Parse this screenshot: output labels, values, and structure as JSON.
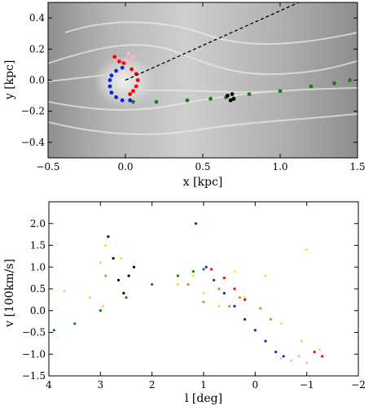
{
  "chart_data": [
    {
      "type": "scatter",
      "title": "",
      "xlabel": "x [kpc]",
      "ylabel": "y [kpc]",
      "xlim": [
        -0.5,
        1.5
      ],
      "ylim": [
        -0.5,
        0.5
      ],
      "xticks": [
        "−0.5",
        "0.0",
        "0.5",
        "1.0",
        "1.5"
      ],
      "yticks": [
        "−0.4",
        "−0.2",
        "0.0",
        "0.2",
        "0.4"
      ],
      "background": "greyscale gas density map",
      "series": [
        {
          "color": "#1020e0",
          "style": "points",
          "points": [
            [
              -0.02,
              0.08
            ],
            [
              -0.06,
              0.06
            ],
            [
              -0.09,
              0.03
            ],
            [
              -0.1,
              0.0
            ],
            [
              -0.1,
              -0.04
            ],
            [
              -0.09,
              -0.08
            ],
            [
              -0.06,
              -0.11
            ],
            [
              -0.02,
              -0.13
            ],
            [
              0.03,
              -0.13
            ]
          ]
        },
        {
          "color": "#ff0000",
          "style": "points",
          "points": [
            [
              0.04,
              0.07
            ],
            [
              0.07,
              0.04
            ],
            [
              0.08,
              0.0
            ],
            [
              0.07,
              -0.04
            ],
            [
              0.05,
              -0.07
            ],
            [
              0.03,
              -0.09
            ],
            [
              -0.07,
              0.15
            ],
            [
              -0.04,
              0.12
            ],
            [
              -0.01,
              0.11
            ]
          ]
        },
        {
          "color": "#ffb6c1",
          "style": "points",
          "points": [
            [
              0.0,
              0.13
            ],
            [
              0.03,
              0.12
            ],
            [
              0.05,
              0.15
            ],
            [
              0.02,
              0.17
            ]
          ]
        },
        {
          "color": "#1e7a1e",
          "style": "points",
          "points": [
            [
              0.05,
              -0.14
            ],
            [
              0.2,
              -0.14
            ],
            [
              0.4,
              -0.13
            ],
            [
              0.55,
              -0.12
            ],
            [
              0.65,
              -0.11
            ],
            [
              0.8,
              -0.09
            ],
            [
              1.0,
              -0.07
            ],
            [
              1.2,
              -0.04
            ],
            [
              1.35,
              -0.02
            ],
            [
              1.45,
              0.0
            ]
          ]
        },
        {
          "color": "#000000",
          "style": "points",
          "points": [
            [
              0.66,
              -0.1
            ],
            [
              0.68,
              -0.13
            ],
            [
              0.7,
              -0.12
            ],
            [
              0.69,
              -0.09
            ]
          ]
        },
        {
          "color": "#000000",
          "style": "dashed",
          "points": [
            [
              0.0,
              0.0
            ],
            [
              1.12,
              0.5
            ]
          ]
        }
      ]
    },
    {
      "type": "scatter",
      "title": "",
      "xlabel": "l [deg]",
      "ylabel": "v [100km/s]",
      "xlim": [
        4,
        -2
      ],
      "ylim": [
        -1.5,
        2.5
      ],
      "xticks": [
        "4",
        "3",
        "2",
        "1",
        "0",
        "−1",
        "−2"
      ],
      "yticks": [
        "−1.5",
        "−1.0",
        "−0.5",
        "0.0",
        "0.5",
        "1.0",
        "1.5",
        "2.0"
      ],
      "series": [
        {
          "color": "#f2e640",
          "style": "points",
          "points": [
            [
              3.7,
              0.45
            ],
            [
              3.2,
              0.3
            ],
            [
              2.95,
              0.1
            ],
            [
              2.9,
              1.5
            ],
            [
              3.0,
              1.1
            ],
            [
              2.6,
              1.2
            ],
            [
              1.5,
              0.6
            ],
            [
              1.2,
              0.8
            ],
            [
              1.0,
              0.4
            ],
            [
              0.7,
              0.1
            ],
            [
              0.4,
              0.9
            ],
            [
              0.2,
              0.3
            ],
            [
              -0.2,
              0.8
            ],
            [
              -0.5,
              -0.3
            ],
            [
              -0.9,
              -0.7
            ],
            [
              -1.0,
              1.4
            ],
            [
              -1.25,
              -0.9
            ]
          ]
        },
        {
          "color": "#e48a2a",
          "style": "points",
          "points": [
            [
              2.9,
              0.8
            ],
            [
              1.3,
              0.6
            ],
            [
              1.0,
              0.2
            ],
            [
              0.7,
              0.5
            ],
            [
              0.5,
              0.1
            ],
            [
              0.3,
              0.3
            ],
            [
              -0.1,
              0.05
            ],
            [
              -0.3,
              -0.2
            ]
          ]
        },
        {
          "color": "#1e7a1e",
          "style": "points",
          "points": [
            [
              3.9,
              -0.45
            ],
            [
              3.5,
              -0.3
            ],
            [
              3.0,
              0.0
            ],
            [
              2.5,
              0.3
            ],
            [
              2.0,
              0.6
            ],
            [
              1.5,
              0.8
            ],
            [
              1.2,
              0.9
            ],
            [
              1.0,
              0.95
            ]
          ]
        },
        {
          "color": "#000000",
          "style": "points",
          "points": [
            [
              2.85,
              1.7
            ],
            [
              2.75,
              1.2
            ],
            [
              2.65,
              0.7
            ],
            [
              2.55,
              0.4
            ],
            [
              2.45,
              0.8
            ],
            [
              2.35,
              1.0
            ]
          ]
        },
        {
          "color": "#1020e0",
          "style": "points",
          "points": [
            [
              1.15,
              2.0
            ],
            [
              0.95,
              1.0
            ],
            [
              0.8,
              0.7
            ],
            [
              0.6,
              0.4
            ],
            [
              0.4,
              0.1
            ],
            [
              0.2,
              -0.2
            ],
            [
              0.0,
              -0.45
            ],
            [
              -0.2,
              -0.7
            ],
            [
              -0.4,
              -0.95
            ],
            [
              -0.55,
              -1.05
            ]
          ]
        },
        {
          "color": "#ff0000",
          "style": "points",
          "points": [
            [
              0.85,
              0.95
            ],
            [
              0.6,
              0.75
            ],
            [
              0.4,
              0.5
            ],
            [
              0.2,
              0.25
            ],
            [
              -1.15,
              -0.95
            ],
            [
              -1.3,
              -1.05
            ]
          ]
        },
        {
          "color": "#ffb6c1",
          "style": "points",
          "points": [
            [
              -0.5,
              -1.1
            ],
            [
              -0.7,
              -1.15
            ],
            [
              -0.85,
              -1.05
            ],
            [
              -1.0,
              -1.2
            ]
          ]
        }
      ]
    }
  ]
}
